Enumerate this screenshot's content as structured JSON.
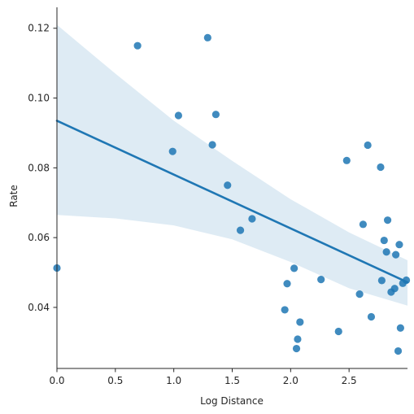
{
  "chart_data": {
    "type": "scatter",
    "title": "",
    "xlabel": "Log Distance",
    "ylabel": "Rate",
    "xlim": [
      0.0,
      3.0
    ],
    "ylim": [
      0.0225,
      0.126
    ],
    "x_ticks": [
      0.0,
      0.5,
      1.0,
      1.5,
      2.0,
      2.5
    ],
    "x_tick_labels": [
      "0.0",
      "0.5",
      "1.0",
      "1.5",
      "2.0",
      "2.5"
    ],
    "y_ticks": [
      0.04,
      0.06,
      0.08,
      0.1,
      0.12
    ],
    "y_tick_labels": [
      "0.04",
      "0.06",
      "0.08",
      "0.10",
      "0.12"
    ],
    "grid": false,
    "legend": "none",
    "colors": {
      "points": "#1f77b4",
      "regression_line": "#1f77b4",
      "confidence_band": "#1f77b4"
    },
    "series": [
      {
        "values": [
          {
            "x": 0.0,
            "y": 0.0513
          },
          {
            "x": 0.69,
            "y": 0.115
          },
          {
            "x": 0.99,
            "y": 0.0847
          },
          {
            "x": 1.04,
            "y": 0.095
          },
          {
            "x": 1.29,
            "y": 0.1173
          },
          {
            "x": 1.33,
            "y": 0.0866
          },
          {
            "x": 1.36,
            "y": 0.0953
          },
          {
            "x": 1.46,
            "y": 0.075
          },
          {
            "x": 1.57,
            "y": 0.0621
          },
          {
            "x": 1.67,
            "y": 0.0654
          },
          {
            "x": 1.95,
            "y": 0.0393
          },
          {
            "x": 1.97,
            "y": 0.0468
          },
          {
            "x": 2.03,
            "y": 0.0512
          },
          {
            "x": 2.05,
            "y": 0.0282
          },
          {
            "x": 2.06,
            "y": 0.0309
          },
          {
            "x": 2.08,
            "y": 0.0358
          },
          {
            "x": 2.26,
            "y": 0.048
          },
          {
            "x": 2.41,
            "y": 0.0331
          },
          {
            "x": 2.48,
            "y": 0.0821
          },
          {
            "x": 2.59,
            "y": 0.0438
          },
          {
            "x": 2.62,
            "y": 0.0638
          },
          {
            "x": 2.66,
            "y": 0.0865
          },
          {
            "x": 2.69,
            "y": 0.0373
          },
          {
            "x": 2.77,
            "y": 0.0802
          },
          {
            "x": 2.78,
            "y": 0.0477
          },
          {
            "x": 2.8,
            "y": 0.0592
          },
          {
            "x": 2.82,
            "y": 0.0559
          },
          {
            "x": 2.83,
            "y": 0.065
          },
          {
            "x": 2.86,
            "y": 0.0444
          },
          {
            "x": 2.89,
            "y": 0.0454
          },
          {
            "x": 2.9,
            "y": 0.0551
          },
          {
            "x": 2.92,
            "y": 0.0275
          },
          {
            "x": 2.93,
            "y": 0.058
          },
          {
            "x": 2.94,
            "y": 0.0341
          },
          {
            "x": 2.96,
            "y": 0.0469
          },
          {
            "x": 2.99,
            "y": 0.0478
          }
        ]
      }
    ],
    "regression": {
      "x": [
        0.0,
        3.0
      ],
      "y": [
        0.0935,
        0.0472
      ]
    },
    "confidence_band": {
      "x": [
        0.0,
        0.5,
        1.0,
        1.5,
        2.0,
        2.5,
        3.0
      ],
      "lower": [
        0.0665,
        0.0655,
        0.0635,
        0.0595,
        0.053,
        0.0455,
        0.0405
      ],
      "upper": [
        0.121,
        0.107,
        0.0935,
        0.082,
        0.071,
        0.0615,
        0.0535
      ]
    }
  }
}
